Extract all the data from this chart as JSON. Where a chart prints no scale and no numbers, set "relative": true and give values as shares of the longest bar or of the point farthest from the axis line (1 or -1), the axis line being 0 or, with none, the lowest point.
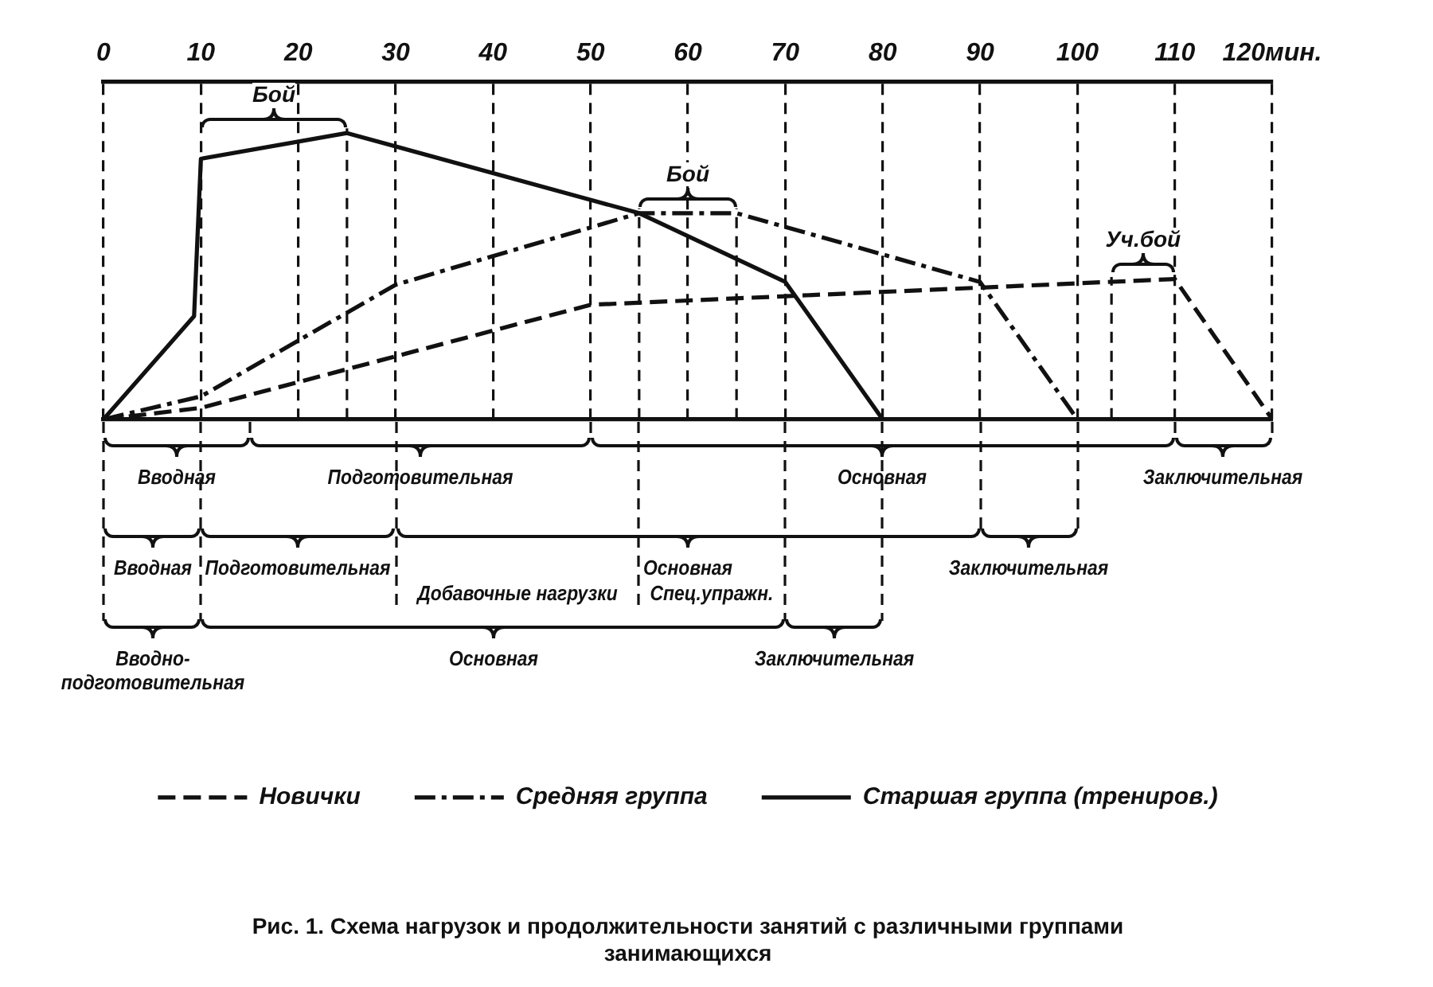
{
  "chart_data": {
    "type": "line",
    "title": "Рис. 1. Схема нагрузок и продолжительности занятий с различными группами занимающихся",
    "relative": true,
    "xlim": [
      0,
      120
    ],
    "xticks": [
      0,
      10,
      20,
      30,
      40,
      50,
      60,
      70,
      80,
      90,
      100,
      110,
      {
        "value": 120,
        "label": "120мин."
      }
    ],
    "series": [
      {
        "name": "Новички",
        "color": "#111111",
        "line_style": "dashed",
        "x": [
          0,
          10,
          50,
          110,
          120
        ],
        "values": [
          0,
          0.04,
          0.4,
          0.49,
          0
        ]
      },
      {
        "name": "Средняя группа",
        "color": "#111111",
        "line_style": "dashdot",
        "x": [
          0,
          10,
          30,
          55,
          65,
          90,
          100
        ],
        "values": [
          0,
          0.08,
          0.47,
          0.72,
          0.72,
          0.48,
          0
        ]
      },
      {
        "name": "Старшая группа (трениров.)",
        "color": "#111111",
        "line_style": "solid",
        "x": [
          0,
          9.3,
          10,
          25,
          55,
          70,
          80
        ],
        "values": [
          0,
          0.36,
          0.91,
          1,
          0.72,
          0.48,
          0
        ]
      }
    ],
    "ref_lines": [
      {
        "axis": "x",
        "value": 25,
        "line_style": "dashed"
      },
      {
        "axis": "x",
        "value": 55,
        "line_style": "dashed"
      },
      {
        "axis": "x",
        "value": 65,
        "line_style": "dashed"
      },
      {
        "axis": "x",
        "value": 103.5,
        "line_style": "dashed"
      }
    ],
    "annotations": [
      "Бой",
      "Бой",
      "Уч.бой",
      "Вводная",
      "Подготовительная",
      "Основная",
      "Заключительная",
      "Вводная",
      "Подготовительная",
      "Основная",
      "Заключительная",
      "Добавочные нагрузки",
      "Спец.упражн.",
      "Вводно-подготовительная",
      "Основная",
      "Заключительная"
    ],
    "grid": "x",
    "legend": "bottom",
    "marker": "none"
  }
}
